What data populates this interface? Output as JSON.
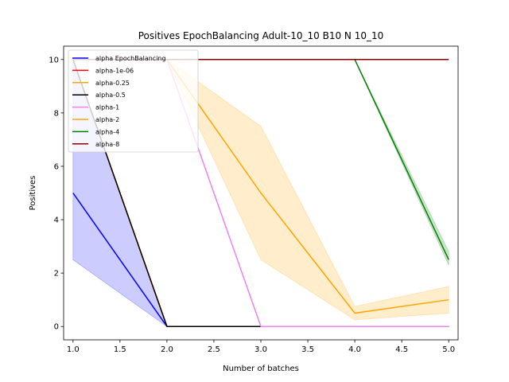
{
  "chart_data": {
    "type": "line",
    "title": "Positives EpochBalancing Adult-10_10 B10 N 10_10",
    "xlabel": "Number of batches",
    "ylabel": "Positives",
    "xlim": [
      0.9,
      5.1
    ],
    "ylim": [
      -0.5,
      10.5
    ],
    "xticks": [
      1.0,
      1.5,
      2.0,
      2.5,
      3.0,
      3.5,
      4.0,
      4.5,
      5.0
    ],
    "xtick_labels": [
      "1.0",
      "1.5",
      "2.0",
      "2.5",
      "3.0",
      "3.5",
      "4.0",
      "4.5",
      "5.0"
    ],
    "yticks": [
      0,
      2,
      4,
      6,
      8,
      10
    ],
    "ytick_labels": [
      "0",
      "2",
      "4",
      "6",
      "8",
      "10"
    ],
    "grid": false,
    "legend_position": "top-left",
    "x": [
      1,
      2,
      3,
      4,
      5
    ],
    "series": [
      {
        "name": "alpha EpochBalancing",
        "color": "#0000ff",
        "values": [
          5,
          0,
          0,
          0,
          0
        ],
        "band": [
          [
            2.5,
            10
          ],
          [
            0,
            0
          ],
          [
            0,
            0
          ],
          [
            0,
            0
          ],
          [
            0,
            0
          ]
        ]
      },
      {
        "name": "alpha-1e-06",
        "color": "#ff0000",
        "values": [
          10,
          0,
          0,
          0,
          0
        ]
      },
      {
        "name": "alpha-0.25",
        "color": "#ffa500",
        "values": [
          10,
          0,
          0,
          0,
          0
        ]
      },
      {
        "name": "alpha-0.5",
        "color": "#000000",
        "values": [
          10,
          0,
          0,
          0,
          0
        ]
      },
      {
        "name": "alpha-1",
        "color": "#ee82ee",
        "values": [
          10,
          10,
          0,
          0,
          0
        ]
      },
      {
        "name": "alpha-2",
        "color": "#ffa500",
        "values": [
          10,
          10,
          5,
          0.5,
          1
        ],
        "band": [
          [
            10,
            10
          ],
          [
            10,
            10
          ],
          [
            2.5,
            7.5
          ],
          [
            0.25,
            0.75
          ],
          [
            0.5,
            1.5
          ]
        ]
      },
      {
        "name": "alpha-4",
        "color": "#008000",
        "values": [
          10,
          10,
          10,
          10,
          2.5
        ],
        "band": [
          [
            10,
            10
          ],
          [
            10,
            10
          ],
          [
            10,
            10
          ],
          [
            10,
            10
          ],
          [
            2.3,
            2.8
          ]
        ]
      },
      {
        "name": "alpha-8",
        "color": "#8b0000",
        "values": [
          10,
          10,
          10,
          10,
          10
        ]
      }
    ]
  }
}
